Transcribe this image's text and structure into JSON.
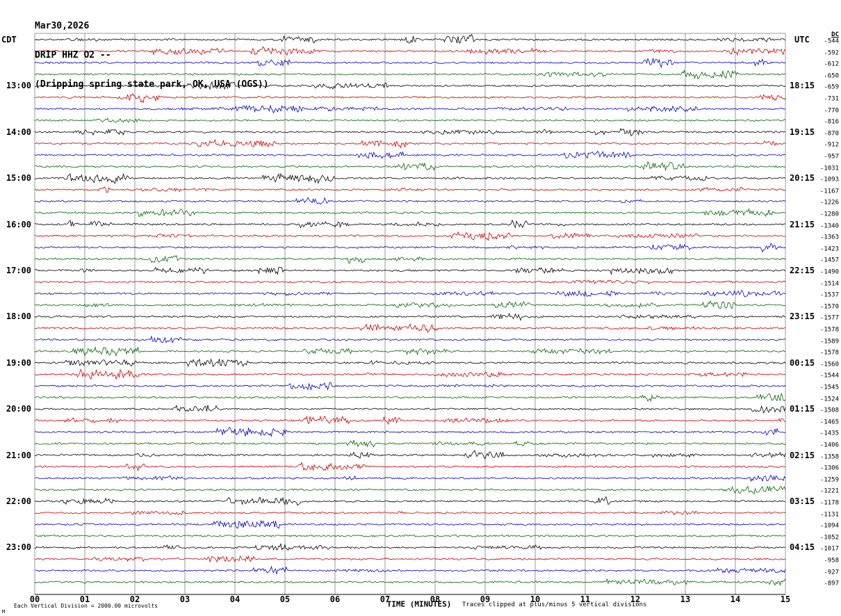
{
  "header": {
    "date_line": "Mar30,2026",
    "station_line": "DRIP HHZ O2 --",
    "location_line": "(Dripping spring state park, OK, USA (OGS))"
  },
  "axis": {
    "left_tz": "CDT",
    "right_tz": "UTC",
    "dc_header": "DC",
    "x_title": "TIME (MINUTES)",
    "x_ticks": [
      "00",
      "01",
      "02",
      "03",
      "04",
      "05",
      "06",
      "07",
      "08",
      "09",
      "10",
      "11",
      "12",
      "13",
      "14",
      "15"
    ],
    "left_hour_labels": [
      "13:00",
      "14:00",
      "15:00",
      "16:00",
      "17:00",
      "18:00",
      "19:00",
      "20:00",
      "21:00",
      "22:00",
      "23:00"
    ],
    "right_hour_labels": [
      "18:15",
      "19:15",
      "20:15",
      "21:15",
      "22:15",
      "23:15",
      "00:15",
      "01:15",
      "02:15",
      "03:15",
      "04:15"
    ],
    "hour_label_first_row": 4,
    "hour_label_row_step": 4
  },
  "footer": {
    "scale_note": "Each Vertical Division = 2000.00 microvolts",
    "clip_note": "Traces clipped at plus/minus 5 vertical divisions",
    "corner_mark": "M"
  },
  "chart_data": {
    "type": "line",
    "subtype": "helicorder-seismogram",
    "title": "DRIP HHZ O2 - Dripping spring state park, OK, USA (OGS)",
    "date": "Mar30,2026",
    "num_traces": 48,
    "minutes_per_trace": 15,
    "x_axis_minutes": [
      0,
      15
    ],
    "x_axis_title": "TIME (MINUTES)",
    "x_tick_labels": [
      "00",
      "01",
      "02",
      "03",
      "04",
      "05",
      "06",
      "07",
      "08",
      "09",
      "10",
      "11",
      "12",
      "13",
      "14",
      "15"
    ],
    "first_trace_start_cdt": "12:00",
    "last_trace_start_cdt": "23:45",
    "cdt_hour_labels": [
      "13:00",
      "14:00",
      "15:00",
      "16:00",
      "17:00",
      "18:00",
      "19:00",
      "20:00",
      "21:00",
      "22:00",
      "23:00"
    ],
    "utc_hour_labels": [
      "18:15",
      "19:15",
      "20:15",
      "21:15",
      "22:15",
      "23:15",
      "00:15",
      "01:15",
      "02:15",
      "03:15",
      "04:15"
    ],
    "microvolts_per_division": 2000.0,
    "clip_divisions": 5,
    "trace_color_cycle": [
      "#000000",
      "#cc0000",
      "#0000bb",
      "#006600"
    ],
    "grid_color": "#9a9a9a",
    "dc_offsets": [
      -544,
      -592,
      -612,
      -650,
      -659,
      -731,
      -770,
      -816,
      -870,
      -912,
      -957,
      -1031,
      -1093,
      -1167,
      -1226,
      -1280,
      -1340,
      -1363,
      -1423,
      -1457,
      -1490,
      -1514,
      -1537,
      -1570,
      -1577,
      -1578,
      -1589,
      -1578,
      -1560,
      -1544,
      -1545,
      -1524,
      -1508,
      -1465,
      -1435,
      -1406,
      -1358,
      -1306,
      -1259,
      -1221,
      -1178,
      -1131,
      -1094,
      -1052,
      -1017,
      -958,
      -927,
      -897
    ],
    "waveform_note": "continuous ambient seismic noise with intermittent higher-amplitude bursts; regenerated procedurally from noise_seed",
    "noise_seed": 20260330
  }
}
